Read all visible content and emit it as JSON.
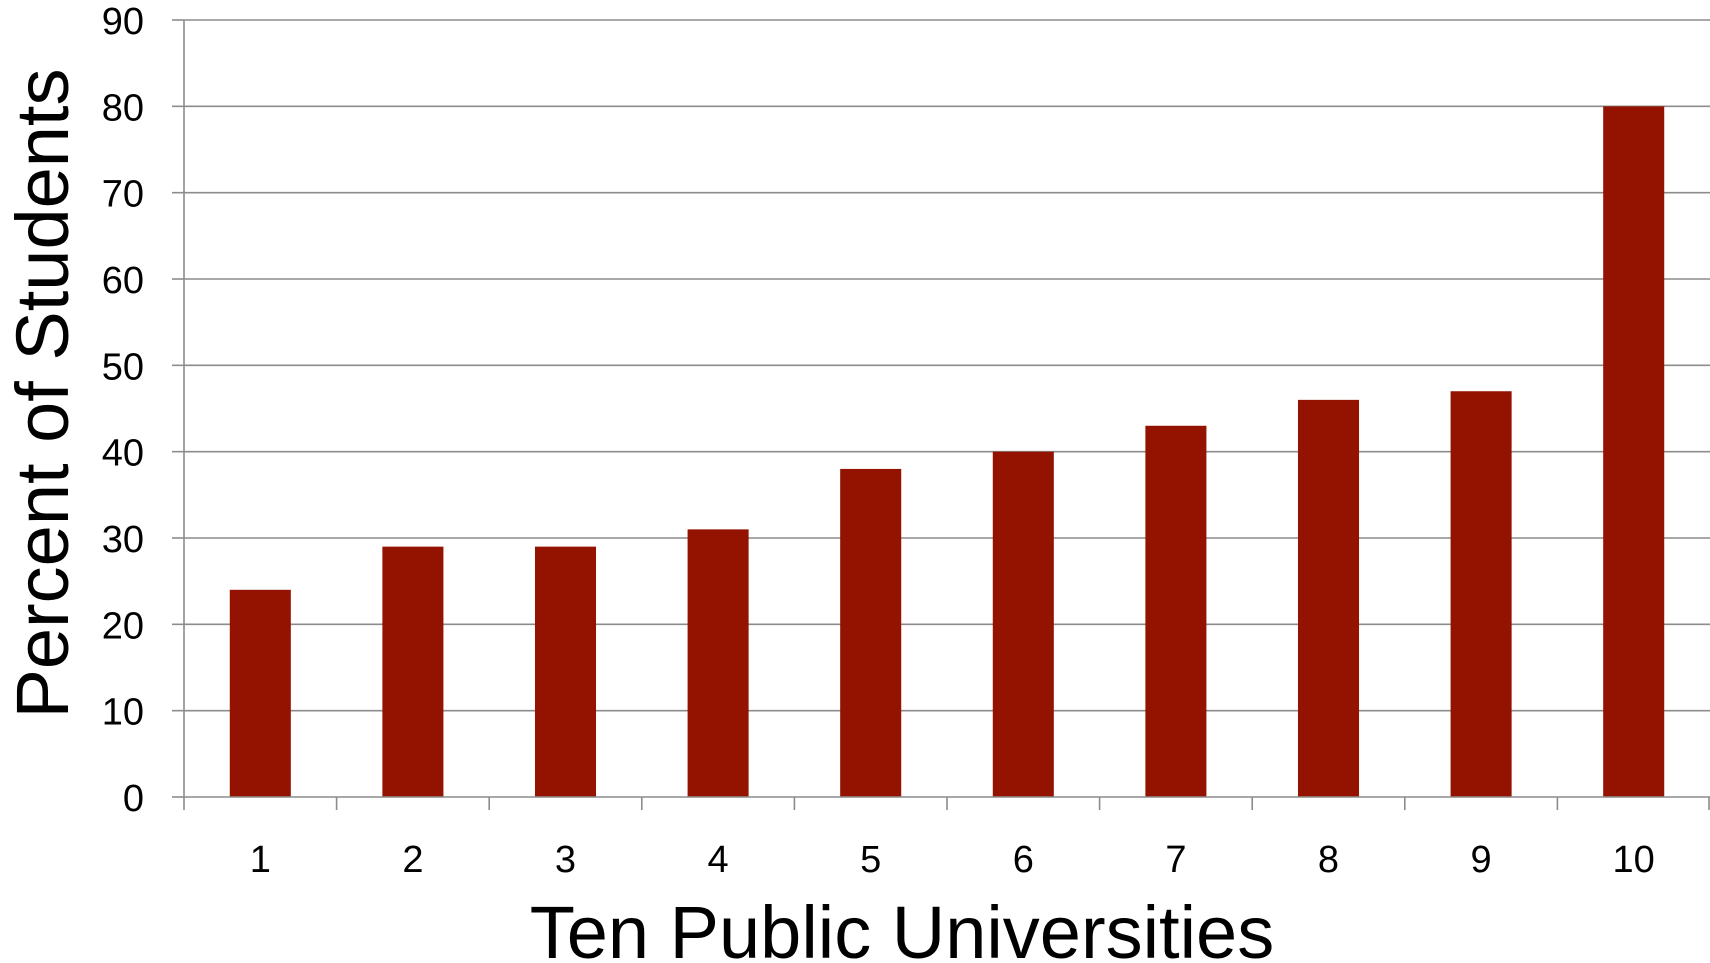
{
  "chart_data": {
    "type": "bar",
    "categories": [
      "1",
      "2",
      "3",
      "4",
      "5",
      "6",
      "7",
      "8",
      "9",
      "10"
    ],
    "values": [
      24,
      29,
      29,
      31,
      38,
      40,
      43,
      46,
      47,
      80
    ],
    "xlabel": "Ten Public Universities",
    "ylabel": "Percent of Students",
    "ylim": [
      0,
      90
    ],
    "yticks": [
      0,
      10,
      20,
      30,
      40,
      50,
      60,
      70,
      80,
      90
    ],
    "grid": true,
    "legend": "none",
    "colors": {
      "bar": "#931300",
      "grid": "#8c8c8c",
      "axis": "#8c8c8c"
    }
  }
}
